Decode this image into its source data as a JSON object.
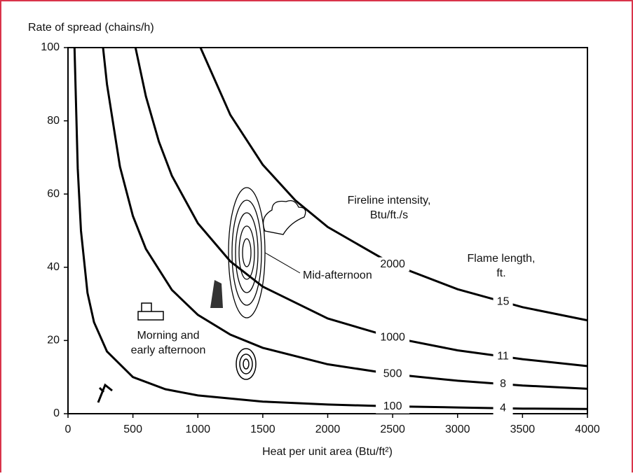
{
  "chart_data": {
    "type": "line",
    "title": "Rate of spread (chains/h)",
    "x_label": "Heat per unit area (Btu/ft²)",
    "intensity_label": "Fireline intensity, Btu/ft./s",
    "flame_label": "Flame length, ft.",
    "annotations": [
      "Mid-afternoon",
      "Morning and early afternoon"
    ],
    "xlim": [
      0,
      4000
    ],
    "xticks": [
      0,
      500,
      1000,
      1500,
      2000,
      2500,
      3000,
      3500,
      4000
    ],
    "ylim": [
      0,
      100
    ],
    "yticks": [
      0,
      20,
      40,
      60,
      80,
      100
    ],
    "color": "#000000",
    "series": [
      {
        "name": "100",
        "flame_length": "4",
        "x": [
          50,
          75,
          100,
          150,
          200,
          300,
          500,
          750,
          1000,
          1500,
          2000,
          2500,
          3000,
          3500,
          4000
        ],
        "values": [
          100,
          67,
          50,
          33,
          25,
          17,
          10,
          6.7,
          5,
          3.3,
          2.5,
          2,
          1.7,
          1.4,
          1.3
        ]
      },
      {
        "name": "500",
        "flame_length": "8",
        "x": [
          270,
          300,
          400,
          500,
          600,
          800,
          1000,
          1250,
          1500,
          2000,
          2500,
          3000,
          3500,
          4000
        ],
        "values": [
          100,
          90,
          67.5,
          54,
          45,
          33.8,
          27,
          21.6,
          18,
          13.5,
          10.8,
          9,
          7.7,
          6.8
        ]
      },
      {
        "name": "1000",
        "flame_length": "11",
        "x": [
          520,
          600,
          700,
          800,
          1000,
          1250,
          1500,
          2000,
          2500,
          3000,
          3500,
          4000
        ],
        "values": [
          100,
          86.7,
          74.3,
          65,
          52,
          41.6,
          34.7,
          26,
          20.8,
          17.3,
          14.9,
          13
        ]
      },
      {
        "name": "2000",
        "flame_length": "15",
        "x": [
          1020,
          1250,
          1500,
          1750,
          2000,
          2500,
          3000,
          3500,
          4000
        ],
        "values": [
          100,
          81.6,
          68,
          58.3,
          51,
          40.8,
          34,
          29.1,
          25.5
        ]
      }
    ]
  }
}
